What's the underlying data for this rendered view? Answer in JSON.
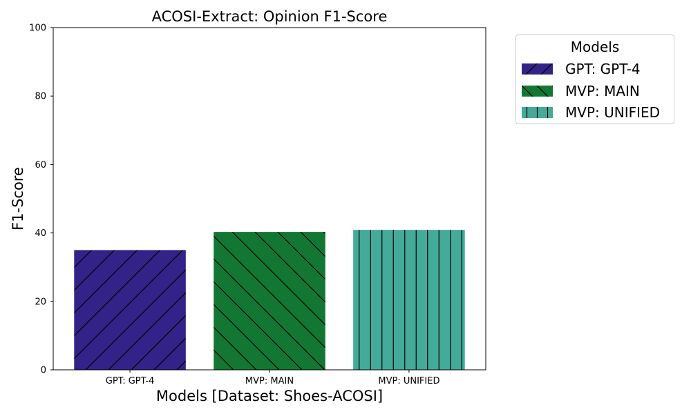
{
  "chart_data": {
    "type": "bar",
    "title": "ACOSI-Extract: Opinion F1-Score",
    "xlabel": "Models [Dataset: Shoes-ACOSI]",
    "ylabel": "F1-Score",
    "ylim": [
      0,
      100
    ],
    "yticks": [
      "0",
      "20",
      "40",
      "60",
      "80",
      "100"
    ],
    "categories": [
      "GPT: GPT-4",
      "MVP: MAIN",
      "MVP: UNIFIED"
    ],
    "values": [
      35.0,
      40.3,
      40.9
    ],
    "colors": [
      "#332288",
      "#117733",
      "#44aa99"
    ],
    "hatches": [
      "/",
      "\\",
      "|"
    ],
    "grid": false,
    "legend_placement": "outside right, top"
  },
  "legend": {
    "title": "Models",
    "items": [
      {
        "label": "GPT: GPT-4",
        "color": "#332288",
        "hatch": "/"
      },
      {
        "label": "MVP: MAIN",
        "color": "#117733",
        "hatch": "\\"
      },
      {
        "label": "MVP: UNIFIED",
        "color": "#44aa99",
        "hatch": "|"
      }
    ]
  }
}
